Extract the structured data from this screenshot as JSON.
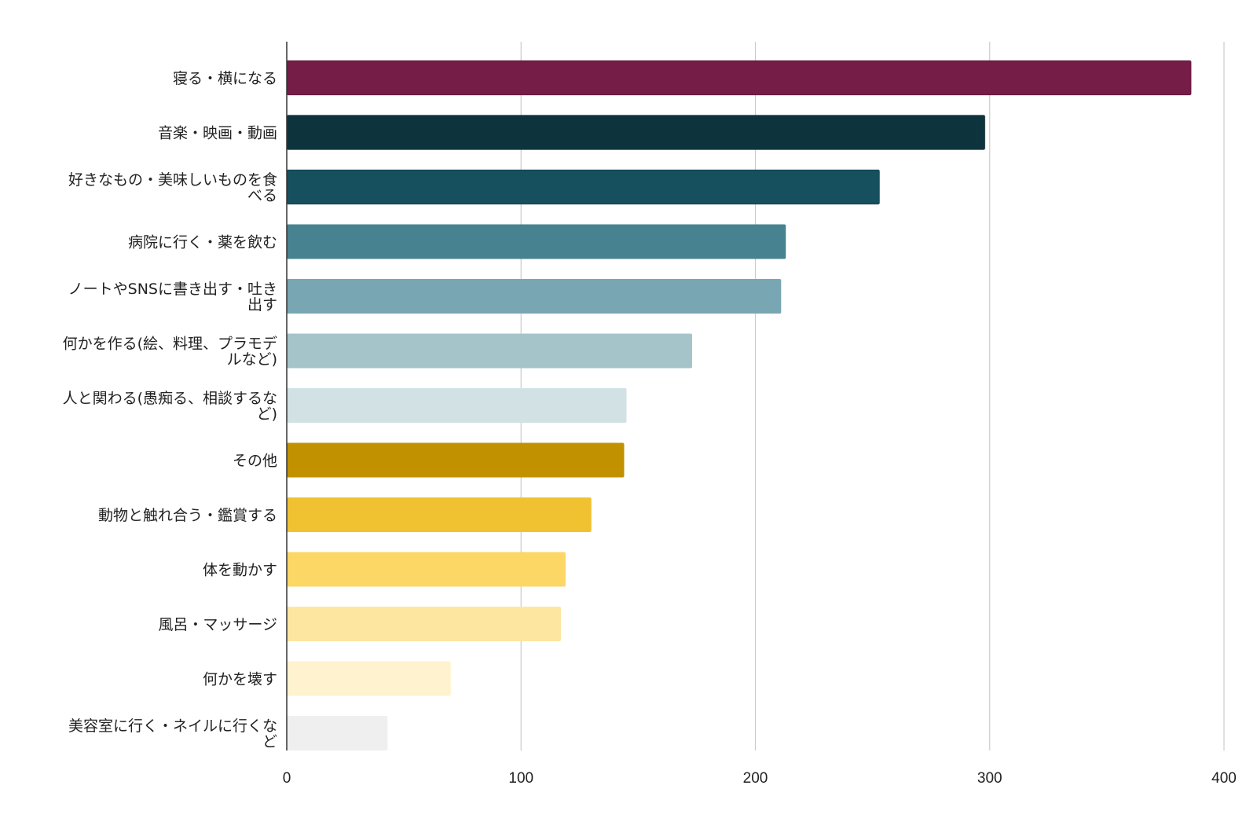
{
  "chart_data": {
    "type": "bar",
    "orientation": "horizontal",
    "title": "",
    "xlabel": "",
    "ylabel": "",
    "xlim": [
      0,
      400
    ],
    "xticks": [
      "0",
      "100",
      "200",
      "300",
      "400"
    ],
    "grid": true,
    "legend": "none",
    "categories": [
      [
        "寝る・横になる"
      ],
      [
        "音楽・映画・動画"
      ],
      [
        "好きなもの・美味しいものを食",
        "べる"
      ],
      [
        "病院に行く・薬を飲む"
      ],
      [
        "ノートやSNSに書き出す・吐き",
        "出す"
      ],
      [
        "何かを作る(絵、料理、プラモデ",
        "ルなど)"
      ],
      [
        "人と関わる(愚痴る、相談するな",
        "ど)"
      ],
      [
        "その他"
      ],
      [
        "動物と触れ合う・鑑賞する"
      ],
      [
        "体を動かす"
      ],
      [
        "風呂・マッサージ"
      ],
      [
        "何かを壊す"
      ],
      [
        "美容室に行く・ネイルに行くな",
        "ど"
      ]
    ],
    "values": [
      386,
      298,
      253,
      213,
      211,
      173,
      145,
      144,
      130,
      119,
      117,
      70,
      43
    ],
    "colors": [
      "#751c47",
      "#0d343d",
      "#16505e",
      "#468290",
      "#78a7b3",
      "#a4c4c9",
      "#d1e1e4",
      "#c29100",
      "#f0c232",
      "#fcd766",
      "#fde69f",
      "#fff3cf",
      "#efefef"
    ]
  }
}
